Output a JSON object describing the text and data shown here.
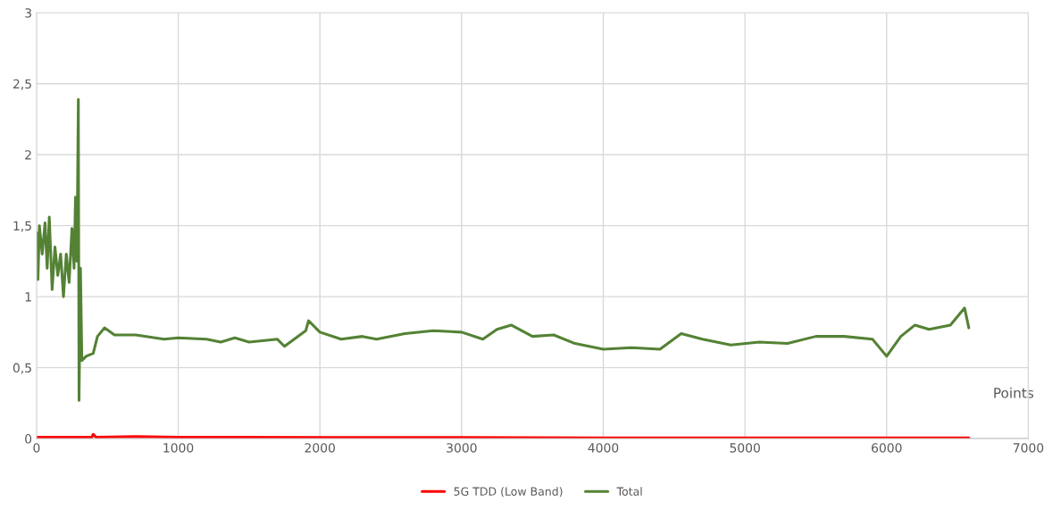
{
  "chart_data": {
    "type": "line",
    "xlabel": "Points",
    "xlim": [
      0,
      7000
    ],
    "xticks": [
      0,
      1000,
      2000,
      3000,
      4000,
      5000,
      6000,
      7000
    ],
    "ylim": [
      0,
      3
    ],
    "yticks": [
      0,
      {
        "value": 0.5,
        "label": "0,5"
      },
      1,
      {
        "value": 1.5,
        "label": "1,5"
      },
      2,
      {
        "value": 2.5,
        "label": "2,5"
      },
      3
    ],
    "grid": true,
    "legend": "bottom",
    "marker": "none",
    "line_style": "solid",
    "series": [
      {
        "name": "5G TDD (Low Band)",
        "color": "#ff0000",
        "x": [
          0,
          200,
          390,
          400,
          420,
          700,
          1000,
          2000,
          3000,
          4000,
          5000,
          6000,
          6580
        ],
        "values": [
          0.01,
          0.01,
          0.01,
          0.03,
          0.01,
          0.015,
          0.01,
          0.008,
          0.008,
          0.005,
          0.005,
          0.005,
          0.005
        ]
      },
      {
        "name": "Total",
        "color": "#548235",
        "x": [
          0,
          10,
          20,
          40,
          60,
          75,
          90,
          110,
          130,
          150,
          170,
          190,
          210,
          230,
          250,
          265,
          275,
          285,
          295,
          300,
          310,
          320,
          350,
          400,
          430,
          480,
          550,
          700,
          900,
          1000,
          1200,
          1300,
          1400,
          1500,
          1700,
          1750,
          1900,
          1920,
          2000,
          2150,
          2300,
          2400,
          2600,
          2800,
          3000,
          3150,
          3250,
          3350,
          3500,
          3650,
          3800,
          4000,
          4200,
          4400,
          4550,
          4700,
          4900,
          5100,
          5300,
          5500,
          5700,
          5900,
          6000,
          6100,
          6200,
          6300,
          6450,
          6550,
          6580
        ],
        "values": [
          1.45,
          1.12,
          1.5,
          1.3,
          1.52,
          1.2,
          1.56,
          1.05,
          1.35,
          1.15,
          1.3,
          1.0,
          1.3,
          1.1,
          1.48,
          1.2,
          1.7,
          1.25,
          2.39,
          0.27,
          1.2,
          0.55,
          0.58,
          0.6,
          0.72,
          0.78,
          0.73,
          0.73,
          0.7,
          0.71,
          0.7,
          0.68,
          0.71,
          0.68,
          0.7,
          0.65,
          0.76,
          0.83,
          0.75,
          0.7,
          0.72,
          0.7,
          0.74,
          0.76,
          0.75,
          0.7,
          0.77,
          0.8,
          0.72,
          0.73,
          0.67,
          0.63,
          0.64,
          0.63,
          0.74,
          0.7,
          0.66,
          0.68,
          0.67,
          0.72,
          0.72,
          0.7,
          0.58,
          0.72,
          0.8,
          0.77,
          0.8,
          0.92,
          0.78
        ]
      }
    ]
  }
}
